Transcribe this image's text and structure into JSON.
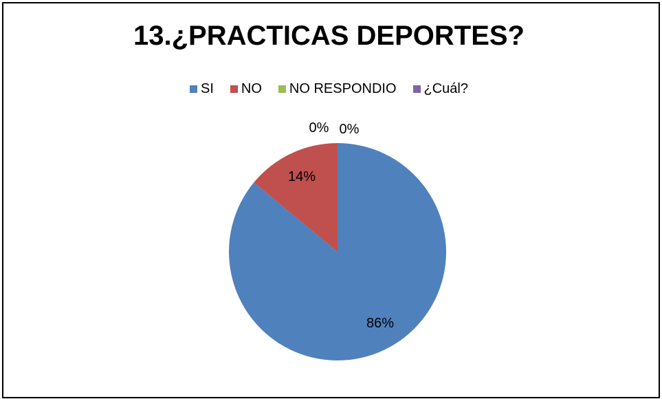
{
  "chart_data": {
    "type": "pie",
    "title": "13.¿PRACTICAS DEPORTES?",
    "categories": [
      "SI",
      "NO",
      "NO RESPONDIO",
      "¿Cuál?"
    ],
    "values": [
      86,
      14,
      0,
      0
    ],
    "data_labels": [
      "86%",
      "14%",
      "0%",
      "0%"
    ],
    "colors": [
      "#4F81BD",
      "#C0504D",
      "#9BBB59",
      "#8064A2"
    ],
    "legend_position": "top"
  }
}
